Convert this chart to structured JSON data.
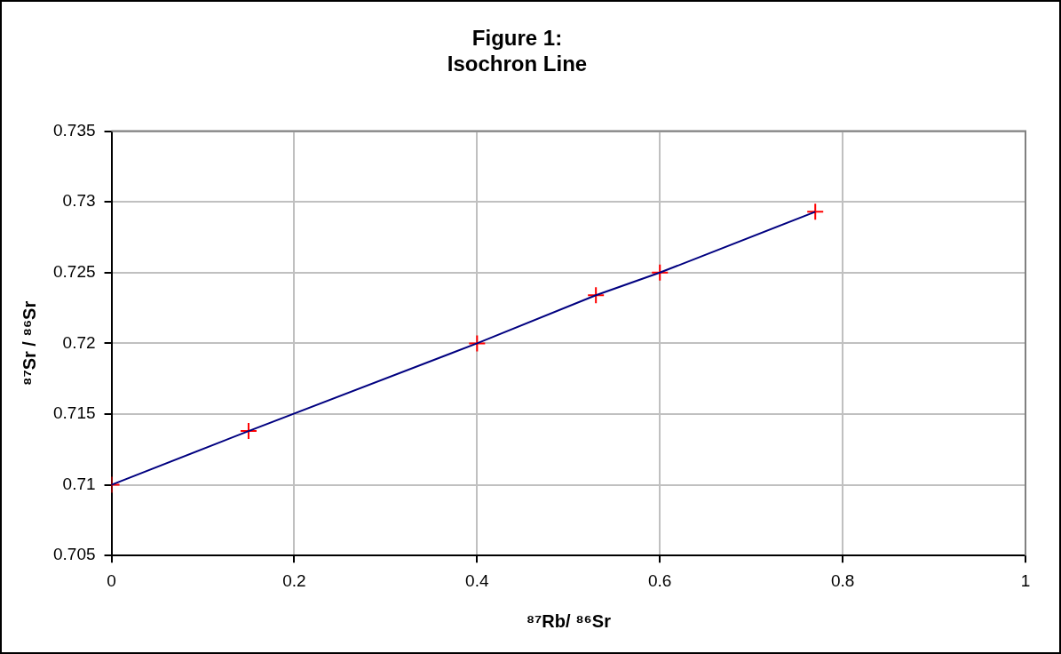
{
  "chart_data": {
    "type": "scatter",
    "title": "Figure 1:\nIsochron Line",
    "xlabel": "⁸⁷Rb/ ⁸⁶Sr",
    "ylabel": "⁸⁷Sr / ⁸⁶Sr",
    "series": [
      {
        "type": "line",
        "color": "#000080",
        "x": [
          0,
          0.15,
          0.4,
          0.53,
          0.6,
          0.77
        ],
        "values": [
          0.71,
          0.7138,
          0.72,
          0.7234,
          0.725,
          0.7293
        ],
        "marker": "none"
      },
      {
        "color": "#ff0000",
        "x": [
          0,
          0.15,
          0.4,
          0.53,
          0.6,
          0.77
        ],
        "values": [
          0.71,
          0.7138,
          0.72,
          0.7234,
          0.725,
          0.7293
        ],
        "marker": "cross"
      }
    ],
    "xlim": [
      0,
      1
    ],
    "xticks": [
      0,
      0.2,
      0.4,
      0.6,
      0.8,
      1
    ],
    "ylim": [
      0.705,
      0.735
    ],
    "yticks": [
      0.705,
      0.71,
      0.715,
      0.72,
      0.725,
      0.73,
      0.735
    ],
    "grid": true,
    "legend": false
  }
}
